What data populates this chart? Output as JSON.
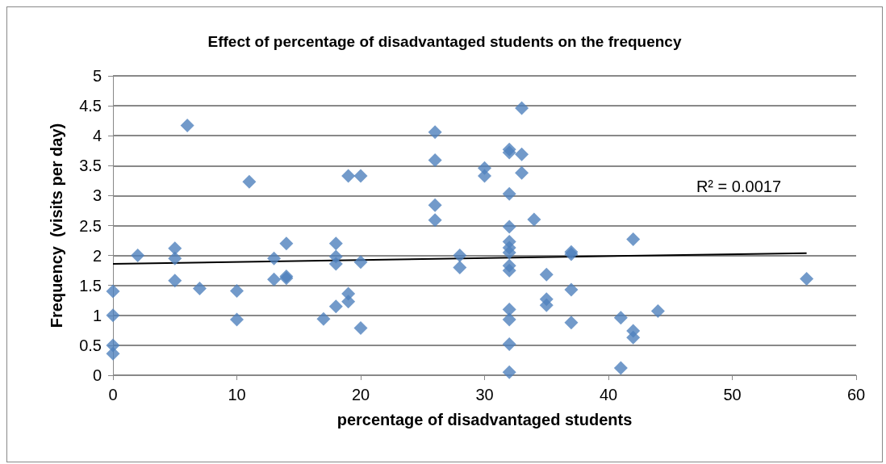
{
  "chart_data": {
    "type": "scatter",
    "title": "Effect of percentage of disadvantaged students on the frequency",
    "xlabel": "percentage of disadvantaged students",
    "ylabel": "Frequency  (visits per day)",
    "xlim": [
      0,
      60
    ],
    "xticks": [
      0,
      10,
      20,
      30,
      40,
      50,
      60
    ],
    "ylim": [
      0,
      5
    ],
    "yticks": [
      0,
      0.5,
      1,
      1.5,
      2,
      2.5,
      3,
      3.5,
      4,
      4.5,
      5
    ],
    "grid": "y",
    "marker": "diamond",
    "annotations": [
      "R² = 0.0017"
    ],
    "series": [
      {
        "color": "#4f81bd",
        "x": [
          0,
          0,
          0,
          0,
          2,
          5,
          5,
          5,
          6,
          7,
          10,
          10,
          11,
          13,
          13,
          14,
          14,
          14,
          17,
          18,
          18,
          18,
          18,
          19,
          19,
          19,
          20,
          20,
          20,
          26,
          26,
          26,
          26,
          28,
          28,
          30,
          30,
          32,
          32,
          32,
          32,
          32,
          32,
          32,
          32,
          32,
          32,
          32,
          32,
          32,
          33,
          33,
          33,
          34,
          35,
          35,
          35,
          37,
          37,
          37,
          37,
          41,
          41,
          42,
          42,
          42,
          44,
          56
        ],
        "values": [
          1.4,
          1.0,
          0.5,
          0.36,
          2.0,
          2.12,
          1.95,
          1.58,
          4.17,
          1.45,
          1.41,
          0.93,
          3.23,
          1.95,
          1.6,
          2.2,
          1.62,
          1.65,
          0.94,
          2.2,
          1.98,
          1.86,
          1.15,
          3.33,
          1.36,
          1.23,
          3.33,
          1.89,
          0.79,
          4.06,
          3.59,
          2.84,
          2.59,
          2.0,
          1.8,
          3.46,
          3.33,
          3.77,
          3.72,
          3.03,
          2.48,
          2.23,
          2.13,
          2.05,
          1.83,
          1.75,
          1.1,
          0.93,
          0.52,
          0.05,
          4.46,
          3.69,
          3.38,
          2.6,
          1.68,
          1.27,
          1.17,
          2.06,
          2.02,
          1.43,
          0.88,
          0.96,
          0.12,
          2.27,
          0.74,
          0.63,
          1.07,
          1.61
        ]
      },
      {
        "type": "line",
        "color": "#000000",
        "marker": "none",
        "x": [
          0,
          56
        ],
        "values": [
          1.86,
          2.04
        ]
      }
    ]
  }
}
